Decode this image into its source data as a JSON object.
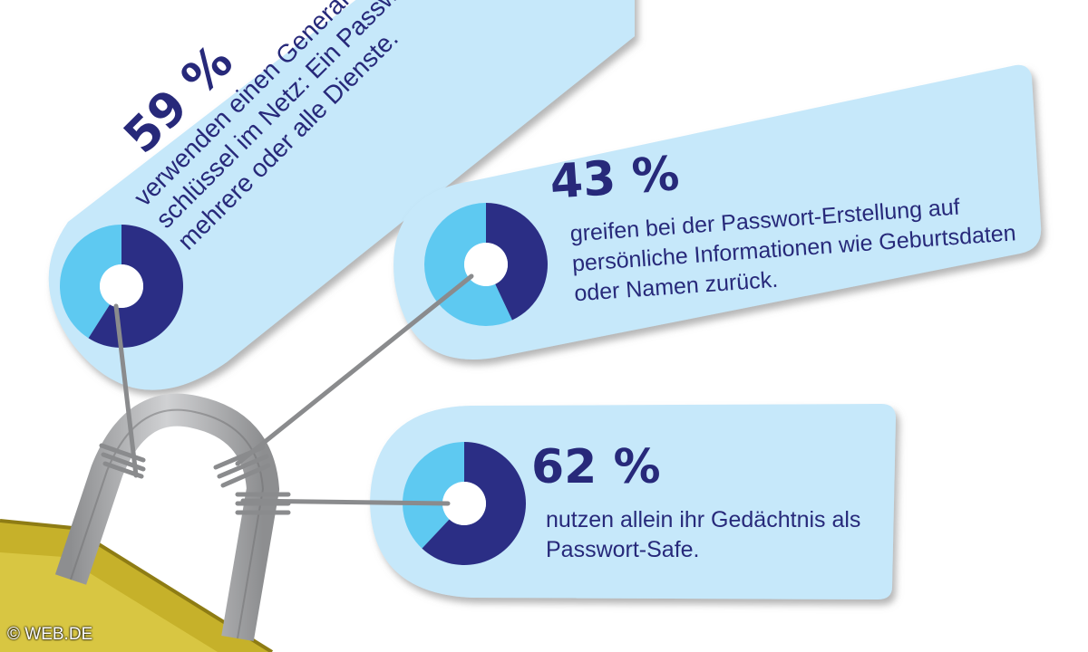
{
  "tags": [
    {
      "percent": "59 %",
      "value": 59,
      "text": "verwenden einen General-schlüssel im Netz: Ein Passwort für mehrere oder alle Dienste."
    },
    {
      "percent": "43 %",
      "value": 43,
      "text": "greifen bei der Passwort-Erstellung auf persönliche Informationen wie Geburtsdaten oder Namen zurück."
    },
    {
      "percent": "62 %",
      "value": 62,
      "text": "nutzen allein ihr Gedächtnis als Passwort-Safe."
    }
  ],
  "colors": {
    "tag_fill": "#c6e8fa",
    "donut_dark": "#2b2e85",
    "donut_light": "#5ec9f1",
    "text": "#27297a",
    "lock": "#c6b12a",
    "shackle": "#a4a5a7"
  },
  "copyright": "© WEB.DE"
}
